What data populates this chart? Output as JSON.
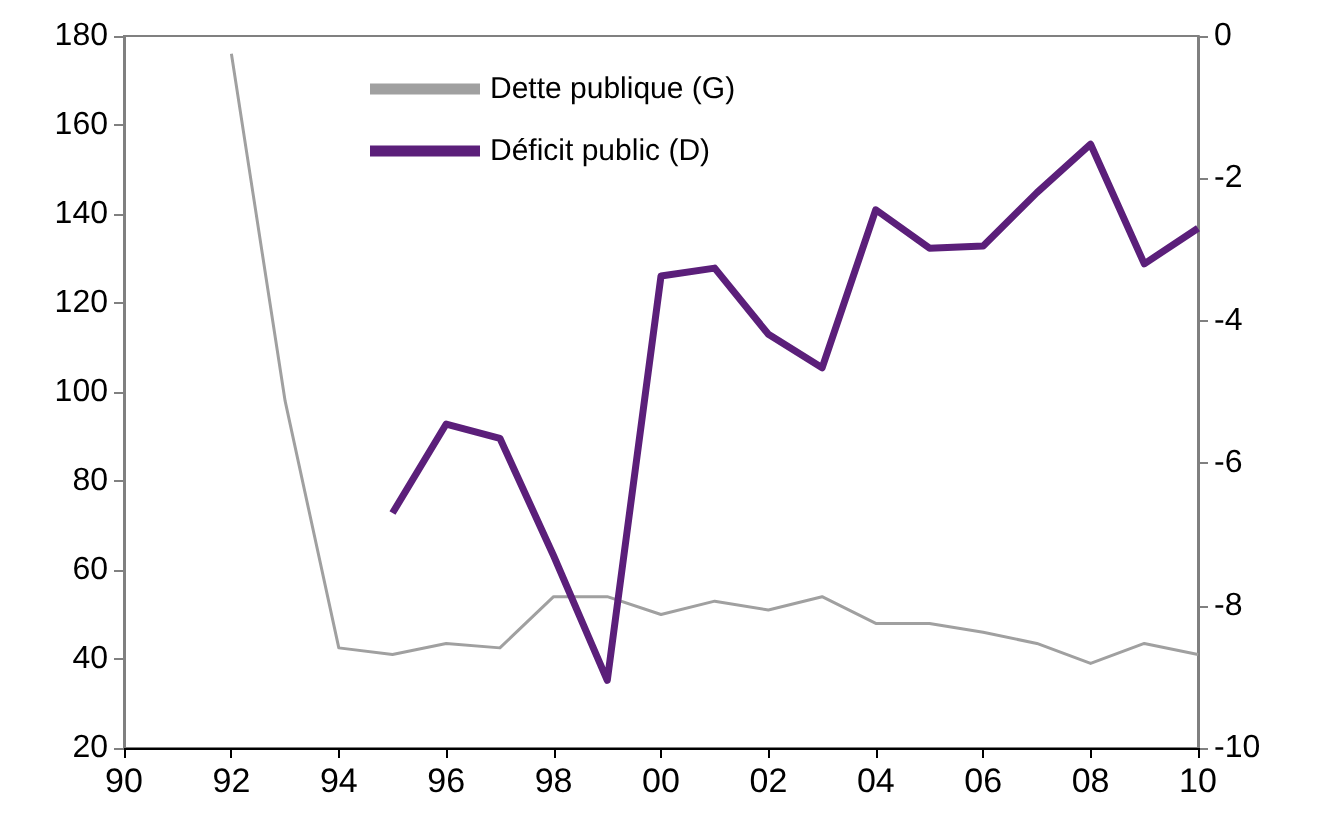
{
  "chart_data": {
    "type": "line",
    "x": [
      1992,
      1993,
      1994,
      1995,
      1996,
      1997,
      1998,
      1999,
      2000,
      2001,
      2002,
      2003,
      2004,
      2005,
      2006,
      2007,
      2008,
      2009,
      2010
    ],
    "series": [
      {
        "name": "Dette publique (G)",
        "color": "#a0a0a0",
        "values": [
          176,
          98,
          42.5,
          41,
          43.5,
          42.5,
          54,
          54,
          50,
          53,
          51,
          54,
          48,
          48,
          46,
          43.5,
          39,
          43.5,
          41
        ]
      },
      {
        "name": "Déficit public (D)",
        "color": "#5b1f7a",
        "axis": "y2",
        "values": [
          null,
          null,
          null,
          -6.7,
          -5.45,
          -5.65,
          -7.3,
          -9.05,
          -3.37,
          -3.26,
          -4.19,
          -4.66,
          -2.44,
          -2.98,
          -2.95,
          -2.2,
          -1.52,
          -3.2,
          -2.7
        ]
      }
    ],
    "xlim": [
      1990,
      2010
    ],
    "xticks": [
      {
        "value": 1990,
        "label": "90"
      },
      {
        "value": 1992,
        "label": "92"
      },
      {
        "value": 1994,
        "label": "94"
      },
      {
        "value": 1996,
        "label": "96"
      },
      {
        "value": 1998,
        "label": "98"
      },
      {
        "value": 2000,
        "label": "00"
      },
      {
        "value": 2002,
        "label": "02"
      },
      {
        "value": 2004,
        "label": "04"
      },
      {
        "value": 2006,
        "label": "06"
      },
      {
        "value": 2008,
        "label": "08"
      },
      {
        "value": 2010,
        "label": "10"
      }
    ],
    "ylim": [
      20,
      180
    ],
    "yticks": [
      20,
      40,
      60,
      80,
      100,
      120,
      140,
      160,
      180
    ],
    "y2lim": [
      -10,
      0
    ],
    "y2ticks": [
      -10,
      -8,
      -6,
      -4,
      -2,
      0
    ],
    "legend": "top",
    "grid": false,
    "marker": "none",
    "line_style": "solid"
  }
}
